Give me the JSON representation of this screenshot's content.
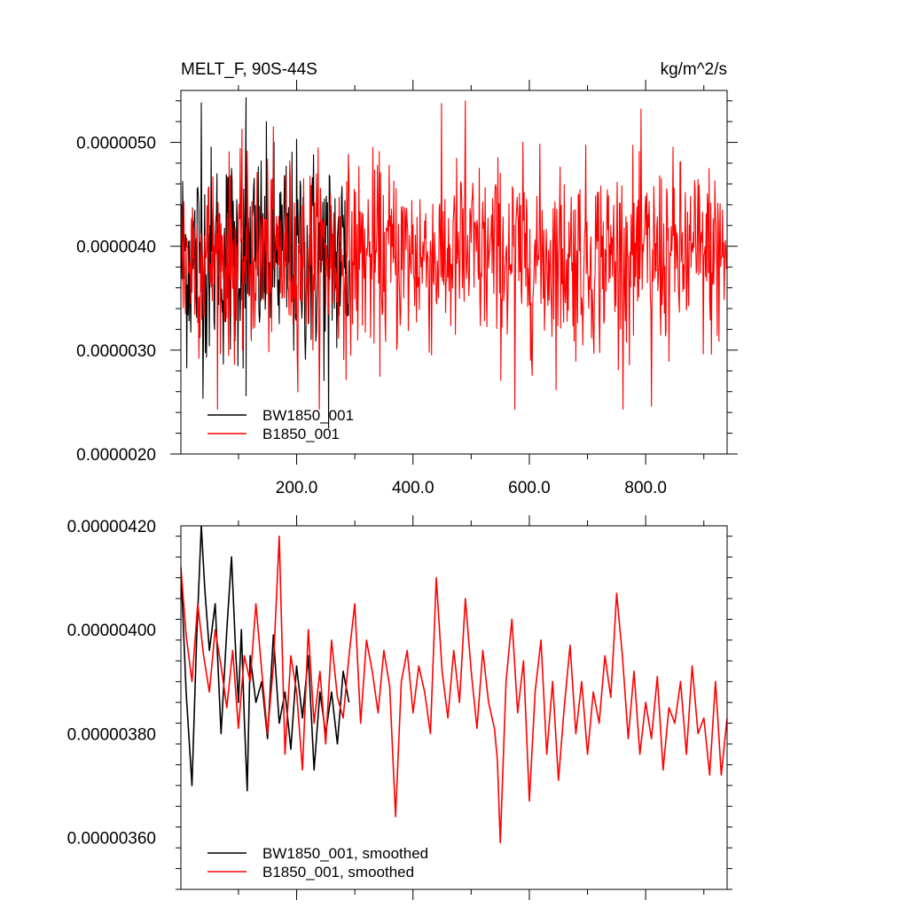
{
  "figure": {
    "title_left": "MELT_F, 90S-44S",
    "title_right": "kg/m^2/s"
  },
  "chart_data": [
    {
      "type": "line",
      "title": "MELT_F, 90S-44S",
      "units": "kg/m^2/s",
      "xlabel": "",
      "ylabel": "",
      "xlim": [
        1,
        940
      ],
      "ylim": [
        2e-06,
        5.5e-06
      ],
      "x_ticks": [
        200,
        400,
        600,
        800
      ],
      "x_tick_labels": [
        "200.0",
        "400.0",
        "600.0",
        "800.0"
      ],
      "y_ticks": [
        2e-06,
        3e-06,
        4e-06,
        5e-06
      ],
      "y_tick_labels": [
        "0.0000020",
        "0.0000030",
        "0.0000040",
        "0.0000050"
      ],
      "grid": false,
      "legend": "bottom-left",
      "series": [
        {
          "name": "BW1850_001",
          "color": "#000000",
          "x_range": [
            1,
            290
          ],
          "summary": {
            "mean": 3.9e-06,
            "min": 2.25e-06,
            "max": 5.45e-06,
            "std": 5.2e-07
          },
          "notable_points": [
            [
              36,
              5.38e-06
            ],
            [
              113,
              5.43e-06
            ],
            [
              113,
              2.56e-06
            ],
            [
              255,
              2.25e-06
            ]
          ]
        },
        {
          "name": "B1850_001",
          "color": "#ff0000",
          "x_range": [
            1,
            940
          ],
          "summary": {
            "mean": 3.9e-06,
            "min": 2.43e-06,
            "max": 5.4e-06,
            "std": 4.5e-07
          },
          "notable_points": [
            [
              490,
              5.4e-06
            ],
            [
              575,
              2.43e-06
            ],
            [
              810,
              2.46e-06
            ]
          ]
        }
      ]
    },
    {
      "type": "line",
      "title": "",
      "xlabel": "",
      "ylabel": "",
      "xlim": [
        1,
        940
      ],
      "ylim": [
        3.5e-06,
        4.2e-06
      ],
      "x_ticks": [
        200,
        400,
        600,
        800
      ],
      "x_tick_labels": [],
      "y_ticks": [
        3.6e-06,
        3.8e-06,
        4e-06,
        4.2e-06
      ],
      "y_tick_labels": [
        "0.00000360",
        "0.00000380",
        "0.00000400",
        "0.00000420"
      ],
      "grid": false,
      "legend": "bottom-left",
      "series": [
        {
          "name": "BW1850_001, smoothed",
          "color": "#000000",
          "x": [
            1,
            10,
            20,
            28,
            36,
            42,
            50,
            60,
            70,
            80,
            88,
            95,
            100,
            105,
            110,
            115,
            120,
            130,
            140,
            150,
            160,
            170,
            180,
            190,
            200,
            210,
            220,
            230,
            240,
            250,
            260,
            270,
            280,
            290
          ],
          "y": [
            4.12e-06,
            3.88e-06,
            3.7e-06,
            3.98e-06,
            4.2e-06,
            4.08e-06,
            3.96e-06,
            4.05e-06,
            3.8e-06,
            4e-06,
            4.14e-06,
            3.96e-06,
            3.86e-06,
            4e-06,
            3.83e-06,
            3.69e-06,
            3.95e-06,
            3.86e-06,
            3.9e-06,
            3.79e-06,
            3.99e-06,
            3.82e-06,
            3.88e-06,
            3.77e-06,
            3.93e-06,
            3.83e-06,
            3.95e-06,
            3.73e-06,
            3.88e-06,
            3.8e-06,
            3.88e-06,
            3.78e-06,
            3.92e-06,
            3.86e-06
          ]
        },
        {
          "name": "B1850_001, smoothed",
          "color": "#ff0000",
          "x": [
            1,
            10,
            20,
            30,
            40,
            50,
            60,
            70,
            80,
            90,
            100,
            110,
            120,
            130,
            140,
            150,
            160,
            170,
            180,
            190,
            200,
            210,
            220,
            230,
            240,
            250,
            260,
            270,
            280,
            290,
            300,
            310,
            320,
            330,
            340,
            350,
            360,
            370,
            380,
            390,
            400,
            410,
            420,
            430,
            440,
            450,
            460,
            470,
            480,
            490,
            500,
            510,
            520,
            530,
            540,
            545,
            550,
            560,
            570,
            580,
            590,
            600,
            610,
            620,
            630,
            640,
            650,
            660,
            670,
            680,
            690,
            700,
            710,
            720,
            730,
            740,
            750,
            760,
            770,
            780,
            790,
            800,
            810,
            820,
            830,
            840,
            850,
            860,
            870,
            880,
            890,
            900,
            910,
            920,
            930,
            940
          ],
          "y": [
            4.12e-06,
            3.99e-06,
            3.9e-06,
            4.05e-06,
            3.95e-06,
            3.88e-06,
            4e-06,
            3.93e-06,
            3.85e-06,
            3.96e-06,
            3.81e-06,
            3.95e-06,
            3.9e-06,
            4.05e-06,
            3.92e-06,
            3.8e-06,
            3.93e-06,
            4.18e-06,
            3.76e-06,
            3.95e-06,
            3.88e-06,
            3.73e-06,
            4e-06,
            3.82e-06,
            3.92e-06,
            3.78e-06,
            3.98e-06,
            3.87e-06,
            3.83e-06,
            3.95e-06,
            4.05e-06,
            3.82e-06,
            3.98e-06,
            3.92e-06,
            3.84e-06,
            3.96e-06,
            3.89e-06,
            3.64e-06,
            3.9e-06,
            3.96e-06,
            3.84e-06,
            3.93e-06,
            3.88e-06,
            3.8e-06,
            4.1e-06,
            3.92e-06,
            3.83e-06,
            3.96e-06,
            3.86e-06,
            4.06e-06,
            3.92e-06,
            3.81e-06,
            3.96e-06,
            3.86e-06,
            3.81e-06,
            3.75e-06,
            3.59e-06,
            3.9e-06,
            4.02e-06,
            3.84e-06,
            3.94e-06,
            3.67e-06,
            3.88e-06,
            3.98e-06,
            3.76e-06,
            3.9e-06,
            3.71e-06,
            3.85e-06,
            3.97e-06,
            3.8e-06,
            3.9e-06,
            3.76e-06,
            3.88e-06,
            3.82e-06,
            3.95e-06,
            3.87e-06,
            4.07e-06,
            3.95e-06,
            3.79e-06,
            3.92e-06,
            3.76e-06,
            3.86e-06,
            3.79e-06,
            3.91e-06,
            3.73e-06,
            3.85e-06,
            3.82e-06,
            3.9e-06,
            3.76e-06,
            3.93e-06,
            3.8e-06,
            3.83e-06,
            3.72e-06,
            3.9e-06,
            3.72e-06,
            3.83e-06
          ]
        }
      ]
    }
  ]
}
